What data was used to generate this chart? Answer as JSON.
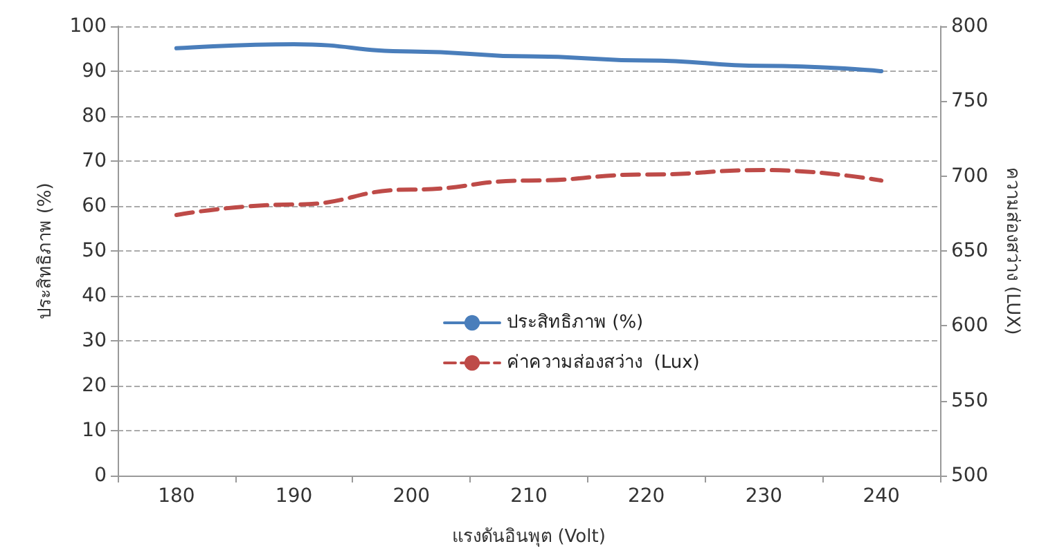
{
  "chart_data": {
    "type": "line",
    "xlabel": "แรงดันอินพุต (Volt)",
    "ylabel": "ประสิทธิภาพ (%)",
    "y2label": "ความส่องสว่าง (LUX)",
    "categories": [
      "180",
      "190",
      "200",
      "210",
      "220",
      "230",
      "240"
    ],
    "series": [
      {
        "name": "ประสิทธิภาพ (%)",
        "color": "#4a7ebb",
        "line_style": "solid",
        "values": [
          95.1,
          96,
          94.4,
          93.3,
          92.4,
          91.2,
          90
        ]
      },
      {
        "name": "ค่าความส่องสว่าง  (Lux)",
        "color": "#be4b48",
        "line_style": "dashed",
        "axis": "y2",
        "values": [
          674,
          681,
          691,
          697,
          701,
          704,
          697
        ]
      }
    ],
    "ylim": [
      0,
      100
    ],
    "yticks": [
      0,
      10,
      20,
      30,
      40,
      50,
      60,
      70,
      80,
      90,
      100
    ],
    "y2lim": [
      500,
      800
    ],
    "y2ticks": [
      500,
      550,
      600,
      650,
      700,
      750,
      800
    ],
    "grid": "y",
    "legend": "center",
    "marker": "none"
  }
}
